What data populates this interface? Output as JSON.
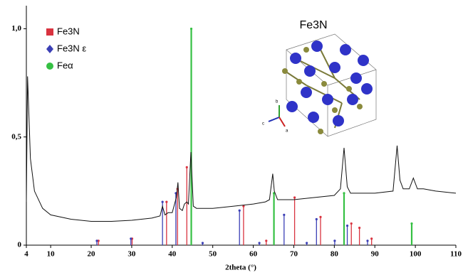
{
  "chart_data": {
    "type": "line",
    "xlabel": "2theta (°)",
    "xlim": [
      4,
      110
    ],
    "xticks": [
      4,
      10,
      20,
      30,
      40,
      50,
      60,
      70,
      80,
      90,
      100,
      110
    ],
    "ylim": [
      0,
      1.1
    ],
    "yticks": [
      0,
      {
        "value": 0.5,
        "label": "0,5"
      },
      {
        "value": 1.0,
        "label": "1,0"
      }
    ],
    "pattern": {
      "color": "#111111",
      "x": [
        4,
        4.3,
        5,
        6,
        8,
        10,
        15,
        20,
        25,
        30,
        35,
        37,
        37.6,
        38.2,
        39,
        40,
        41,
        41.4,
        41.8,
        42.5,
        43,
        43.6,
        44,
        44.6,
        45.2,
        46,
        50,
        55,
        60,
        63,
        64,
        64.8,
        65.2,
        66,
        70,
        75,
        80,
        81.5,
        82.4,
        83.2,
        84,
        90,
        94.5,
        95.5,
        96.2,
        97,
        98.5,
        99.5,
        100.5,
        102,
        105,
        110
      ],
      "y": [
        0.2,
        0.78,
        0.4,
        0.25,
        0.17,
        0.14,
        0.12,
        0.11,
        0.11,
        0.115,
        0.125,
        0.135,
        0.18,
        0.14,
        0.15,
        0.15,
        0.22,
        0.29,
        0.17,
        0.16,
        0.19,
        0.2,
        0.19,
        0.43,
        0.18,
        0.17,
        0.17,
        0.18,
        0.19,
        0.2,
        0.21,
        0.33,
        0.25,
        0.21,
        0.21,
        0.22,
        0.23,
        0.26,
        0.45,
        0.27,
        0.24,
        0.24,
        0.25,
        0.46,
        0.3,
        0.26,
        0.26,
        0.31,
        0.26,
        0.26,
        0.25,
        0.24
      ]
    },
    "series": [
      {
        "name": "Fe3N",
        "color": "#d9333f",
        "marker": "square",
        "x": [
          21.8,
          30.1,
          38.6,
          41.3,
          43.6,
          57.6,
          63.2,
          70.2,
          76.6,
          84.2,
          86.2,
          89.2
        ],
        "values": [
          0.02,
          0.03,
          0.2,
          0.26,
          0.36,
          0.18,
          0.02,
          0.22,
          0.13,
          0.1,
          0.08,
          0.03
        ]
      },
      {
        "name": "Fe3N ε",
        "color": "#3b3fb5",
        "marker": "diamond",
        "x": [
          21.4,
          29.8,
          37.6,
          40.9,
          47.5,
          56.6,
          61.5,
          67.6,
          73.2,
          75.6,
          80.1,
          83.2,
          88.2
        ],
        "values": [
          0.02,
          0.03,
          0.2,
          0.24,
          0.01,
          0.16,
          0.01,
          0.14,
          0.01,
          0.12,
          0.02,
          0.09,
          0.02
        ]
      },
      {
        "name": "Feα",
        "color": "#35c043",
        "marker": "circle",
        "x": [
          44.7,
          65.1,
          82.4,
          99.1
        ],
        "values": [
          1.0,
          0.24,
          0.24,
          0.1
        ]
      }
    ],
    "inset": {
      "title": "Fe3N",
      "axes": [
        "b",
        "c",
        "a"
      ]
    }
  }
}
